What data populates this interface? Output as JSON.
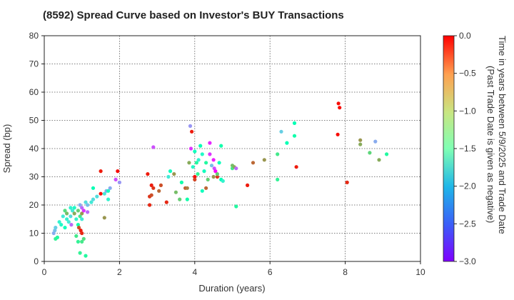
{
  "chart_data": {
    "type": "scatter",
    "title": "(8592)   Spread Curve based on Investor's BUY Transactions",
    "xlabel": "Duration (years)",
    "ylabel": "Spread (bp)",
    "xlim": [
      0,
      10
    ],
    "ylim": [
      0,
      80
    ],
    "xticks": [
      "0",
      "2",
      "4",
      "6",
      "8",
      "10"
    ],
    "yticks": [
      "0",
      "10",
      "20",
      "30",
      "40",
      "50",
      "60",
      "70",
      "80"
    ],
    "grid": true,
    "colorbar": {
      "label_line1": "Time in years between 5/9/2025 and Trade Date",
      "label_line2": "(Past Trade Date is given as negative)",
      "range": [
        -3.0,
        0.0
      ],
      "ticks": [
        "0.0",
        "−0.5",
        "−1.0",
        "−1.5",
        "−2.0",
        "−2.5",
        "−3.0"
      ],
      "colormap": "rainbow"
    },
    "points": [
      [
        0.25,
        10,
        -2.3
      ],
      [
        0.28,
        11,
        -2.2
      ],
      [
        0.3,
        12,
        -2.1
      ],
      [
        0.3,
        8,
        -1.2
      ],
      [
        0.35,
        8.5,
        -1.3
      ],
      [
        0.4,
        14,
        -1.8
      ],
      [
        0.45,
        13,
        -1.7
      ],
      [
        0.5,
        16,
        -1.9
      ],
      [
        0.55,
        12,
        -1.6
      ],
      [
        0.55,
        18,
        -1.0
      ],
      [
        0.6,
        15,
        -1.8
      ],
      [
        0.6,
        17,
        -0.8
      ],
      [
        0.65,
        14,
        -1.9
      ],
      [
        0.7,
        16,
        -2.0
      ],
      [
        0.7,
        19,
        -1.8
      ],
      [
        0.72,
        13,
        -2.6
      ],
      [
        0.75,
        18,
        -1.9
      ],
      [
        0.8,
        17,
        -0.7
      ],
      [
        0.8,
        19,
        -1.7
      ],
      [
        0.85,
        15,
        -1.8
      ],
      [
        0.85,
        9,
        -1.1
      ],
      [
        0.9,
        18,
        -0.9
      ],
      [
        0.9,
        13,
        -1.4
      ],
      [
        0.9,
        7,
        -1.2
      ],
      [
        0.92,
        12,
        -0.3
      ],
      [
        0.95,
        20,
        -2.3
      ],
      [
        0.95,
        3,
        -1.2
      ],
      [
        0.95,
        16,
        -1.1
      ],
      [
        0.97,
        11,
        -0.1
      ],
      [
        1.0,
        10,
        -0.15
      ],
      [
        1.0,
        19,
        -2.6
      ],
      [
        1.0,
        17,
        -0.6
      ],
      [
        1.0,
        15,
        -1.9
      ],
      [
        1.0,
        7,
        -1.1
      ],
      [
        1.05,
        18,
        -2.8
      ],
      [
        1.05,
        8,
        -1.0
      ],
      [
        1.1,
        2,
        -1.3
      ],
      [
        1.1,
        21,
        -2.0
      ],
      [
        1.15,
        20,
        -2.2
      ],
      [
        1.15,
        17.5,
        -2.6
      ],
      [
        1.25,
        21,
        -1.9
      ],
      [
        1.3,
        22,
        -2.0
      ],
      [
        1.3,
        26,
        -1.5
      ],
      [
        1.4,
        23,
        -2.0
      ],
      [
        1.5,
        24,
        -0.05
      ],
      [
        1.5,
        32,
        -0.1
      ],
      [
        1.6,
        15.5,
        -0.6
      ],
      [
        1.6,
        24,
        -1.9
      ],
      [
        1.65,
        25,
        -2.3
      ],
      [
        1.7,
        22,
        -1.8
      ],
      [
        1.7,
        25,
        -1.6
      ],
      [
        1.75,
        26,
        -2.3
      ],
      [
        1.9,
        29,
        -2.7
      ],
      [
        1.95,
        32,
        -0.05
      ],
      [
        2.0,
        28,
        -2.4
      ],
      [
        2.75,
        31,
        -0.1
      ],
      [
        2.8,
        23,
        -0.2
      ],
      [
        2.8,
        20,
        -0.15
      ],
      [
        2.85,
        23.5,
        -0.3
      ],
      [
        2.85,
        27,
        -0.1
      ],
      [
        2.9,
        26,
        -0.2
      ],
      [
        2.9,
        40.5,
        -2.7
      ],
      [
        3.05,
        25,
        -0.4
      ],
      [
        3.1,
        27,
        -0.3
      ],
      [
        3.25,
        21,
        -0.15
      ],
      [
        3.3,
        30,
        -1.9
      ],
      [
        3.35,
        32,
        -1.6
      ],
      [
        3.45,
        31,
        -0.6
      ],
      [
        3.5,
        24.5,
        -0.8
      ],
      [
        3.6,
        22,
        -0.9
      ],
      [
        3.65,
        28,
        -1.4
      ],
      [
        3.75,
        26,
        -0.35
      ],
      [
        3.8,
        26,
        -0.5
      ],
      [
        3.8,
        22,
        -1.4
      ],
      [
        3.85,
        35,
        -0.7
      ],
      [
        3.88,
        48,
        -2.4
      ],
      [
        3.9,
        40,
        -2.8
      ],
      [
        3.92,
        46,
        -0.1
      ],
      [
        3.95,
        33.5,
        -1.7
      ],
      [
        4.0,
        39,
        -1.6
      ],
      [
        4.0,
        30,
        -0.05
      ],
      [
        4.0,
        29,
        -0.25
      ],
      [
        4.05,
        35,
        -1.3
      ],
      [
        4.08,
        31,
        -1.2
      ],
      [
        4.1,
        36,
        -1.8
      ],
      [
        4.15,
        41,
        -1.5
      ],
      [
        4.2,
        38,
        -1.7
      ],
      [
        4.2,
        25,
        -1.6
      ],
      [
        4.25,
        32,
        -1.6
      ],
      [
        4.3,
        35,
        -1.3
      ],
      [
        4.3,
        26,
        -0.4
      ],
      [
        4.35,
        29,
        -0.9
      ],
      [
        4.4,
        42,
        -2.85
      ],
      [
        4.4,
        38,
        -2.8
      ],
      [
        4.45,
        34,
        -2.2
      ],
      [
        4.5,
        36,
        -2.9
      ],
      [
        4.5,
        30,
        -0.6
      ],
      [
        4.52,
        33,
        -2.7
      ],
      [
        4.55,
        32,
        -3.0
      ],
      [
        4.6,
        30,
        -0.2
      ],
      [
        4.6,
        31,
        -0.9
      ],
      [
        4.65,
        35,
        -1.6
      ],
      [
        4.7,
        41,
        -1.4
      ],
      [
        4.7,
        29,
        -1.5
      ],
      [
        4.75,
        28.5,
        -1.8
      ],
      [
        5.0,
        34,
        -0.8
      ],
      [
        5.0,
        33,
        -1.1
      ],
      [
        5.05,
        33.5,
        -0.7
      ],
      [
        5.1,
        19.5,
        -1.3
      ],
      [
        5.1,
        33,
        -2.6
      ],
      [
        5.4,
        27,
        -0.1
      ],
      [
        5.55,
        35,
        -0.4
      ],
      [
        5.85,
        36,
        -0.6
      ],
      [
        6.2,
        29,
        -1.2
      ],
      [
        6.2,
        38,
        -1.1
      ],
      [
        6.3,
        46,
        -2.1
      ],
      [
        6.45,
        42,
        -1.5
      ],
      [
        6.65,
        49,
        -1.5
      ],
      [
        6.65,
        44.5,
        -1.4
      ],
      [
        6.7,
        33.5,
        -0.1
      ],
      [
        7.8,
        45,
        -0.05
      ],
      [
        7.82,
        56,
        -0.05
      ],
      [
        7.85,
        54.5,
        -0.05
      ],
      [
        8.05,
        28,
        -0.15
      ],
      [
        8.4,
        43,
        -0.6
      ],
      [
        8.4,
        41.5,
        -0.7
      ],
      [
        8.65,
        38.5,
        -0.95
      ],
      [
        8.8,
        42.5,
        -2.3
      ],
      [
        8.9,
        36,
        -0.7
      ],
      [
        9.1,
        38,
        -1.3
      ]
    ]
  }
}
